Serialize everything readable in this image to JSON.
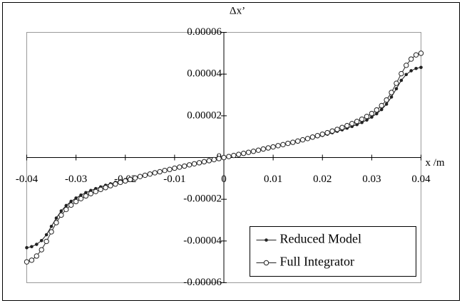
{
  "chart_data": {
    "type": "line",
    "xlabel": "x /m",
    "ylabel": "Δx’",
    "x": [
      -0.04,
      -0.039,
      -0.038,
      -0.037,
      -0.036,
      -0.035,
      -0.034,
      -0.033,
      -0.032,
      -0.031,
      -0.03,
      -0.029,
      -0.028,
      -0.027,
      -0.026,
      -0.025,
      -0.024,
      -0.023,
      -0.022,
      -0.021,
      -0.02,
      -0.019,
      -0.018,
      -0.017,
      -0.016,
      -0.015,
      -0.014,
      -0.013,
      -0.012,
      -0.011,
      -0.01,
      -0.009,
      -0.008,
      -0.007,
      -0.006,
      -0.005,
      -0.004,
      -0.003,
      -0.002,
      -0.001,
      0,
      0.001,
      0.002,
      0.003,
      0.004,
      0.005,
      0.006,
      0.007,
      0.008,
      0.009,
      0.01,
      0.011,
      0.012,
      0.013,
      0.014,
      0.015,
      0.016,
      0.017,
      0.018,
      0.019,
      0.02,
      0.021,
      0.022,
      0.023,
      0.024,
      0.025,
      0.026,
      0.027,
      0.028,
      0.029,
      0.03,
      0.031,
      0.032,
      0.033,
      0.034,
      0.035,
      0.036,
      0.037,
      0.038,
      0.039,
      0.04
    ],
    "series": [
      {
        "name": "Reduced Model",
        "color": "#222222",
        "marker": "filled",
        "values": [
          -4.32e-05,
          -4.27e-05,
          -4.16e-05,
          -3.98e-05,
          -3.7e-05,
          -3.3e-05,
          -2.9e-05,
          -2.56e-05,
          -2.3e-05,
          -2.1e-05,
          -1.94e-05,
          -1.8e-05,
          -1.68e-05,
          -1.58e-05,
          -1.49e-05,
          -1.41e-05,
          -1.33e-05,
          -1.26e-05,
          -1.19e-05,
          -1.12e-05,
          -1.06e-05,
          -1e-05,
          -9.4e-06,
          -8.8e-06,
          -8.2e-06,
          -7.6e-06,
          -7e-06,
          -6.5e-06,
          -6e-06,
          -5.5e-06,
          -5e-06,
          -4.5e-06,
          -4e-06,
          -3.5e-06,
          -3e-06,
          -2.5e-06,
          -2e-06,
          -1.5e-06,
          -1e-06,
          -5e-07,
          0,
          5e-07,
          1e-06,
          1.5e-06,
          2e-06,
          2.5e-06,
          3e-06,
          3.5e-06,
          4e-06,
          4.5e-06,
          5e-06,
          5.5e-06,
          6e-06,
          6.5e-06,
          7e-06,
          7.6e-06,
          8.2e-06,
          8.8e-06,
          9.4e-06,
          1e-05,
          1.06e-05,
          1.12e-05,
          1.19e-05,
          1.26e-05,
          1.33e-05,
          1.41e-05,
          1.49e-05,
          1.58e-05,
          1.68e-05,
          1.8e-05,
          1.94e-05,
          2.1e-05,
          2.3e-05,
          2.56e-05,
          2.9e-05,
          3.3e-05,
          3.7e-05,
          3.98e-05,
          4.16e-05,
          4.27e-05,
          4.32e-05
        ]
      },
      {
        "name": "Full Integrator",
        "color": "#222222",
        "marker": "open",
        "values": [
          -5e-05,
          -4.92e-05,
          -4.72e-05,
          -4.42e-05,
          -4.02e-05,
          -3.56e-05,
          -3.12e-05,
          -2.76e-05,
          -2.49e-05,
          -2.28e-05,
          -2.11e-05,
          -1.97e-05,
          -1.84e-05,
          -1.73e-05,
          -1.63e-05,
          -1.53e-05,
          -1.44e-05,
          -1.35e-05,
          -1.27e-05,
          -1.19e-05,
          -1.12e-05,
          -1.05e-05,
          -9.8e-06,
          -9.1e-06,
          -8.5e-06,
          -7.9e-06,
          -7.3e-06,
          -6.8e-06,
          -6.2e-06,
          -5.7e-06,
          -5.1e-06,
          -4.6e-06,
          -4.1e-06,
          -3.5e-06,
          -3e-06,
          -2.5e-06,
          -2e-06,
          -1.5e-06,
          -1e-06,
          -5e-07,
          0,
          5e-07,
          1e-06,
          1.5e-06,
          2e-06,
          2.5e-06,
          3e-06,
          3.5e-06,
          4.1e-06,
          4.6e-06,
          5.1e-06,
          5.7e-06,
          6.2e-06,
          6.8e-06,
          7.3e-06,
          7.9e-06,
          8.5e-06,
          9.1e-06,
          9.8e-06,
          1.05e-05,
          1.12e-05,
          1.19e-05,
          1.27e-05,
          1.35e-05,
          1.44e-05,
          1.53e-05,
          1.63e-05,
          1.73e-05,
          1.84e-05,
          1.97e-05,
          2.11e-05,
          2.28e-05,
          2.49e-05,
          2.76e-05,
          3.12e-05,
          3.56e-05,
          4.02e-05,
          4.42e-05,
          4.72e-05,
          4.92e-05,
          5e-05
        ]
      }
    ],
    "xlim": [
      -0.04,
      0.04
    ],
    "xticks": [
      -0.04,
      -0.03,
      -0.02,
      -0.01,
      0,
      0.01,
      0.02,
      0.03,
      0.04
    ],
    "ylim": [
      -6e-05,
      6e-05
    ],
    "yticks": [
      -6e-05,
      -4e-05,
      -2e-05,
      0,
      2e-05,
      4e-05,
      6e-05
    ],
    "legend": "lower right"
  }
}
